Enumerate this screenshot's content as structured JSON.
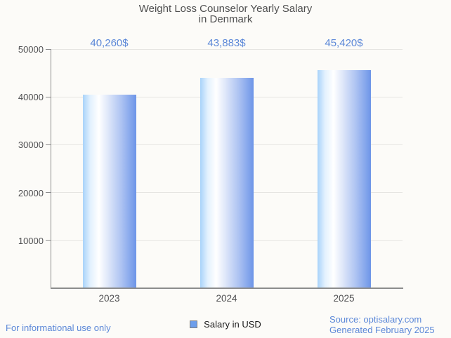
{
  "chart": {
    "title_line1": "Weight Loss Counselor Yearly Salary",
    "title_line2": "in Denmark"
  },
  "chart_data": {
    "type": "bar",
    "title": "Weight Loss Counselor Yearly Salary in Denmark",
    "categories": [
      "2023",
      "2024",
      "2025"
    ],
    "series": [
      {
        "name": "Salary in USD",
        "values": [
          40260,
          43883,
          45420
        ]
      }
    ],
    "value_labels": [
      "40,260$",
      "43,883$",
      "45,420$"
    ],
    "xlabel": "",
    "ylabel": "",
    "ylim": [
      0,
      50000
    ],
    "yticks": [
      10000,
      20000,
      30000,
      40000,
      50000
    ],
    "ytick_labels": [
      "10000",
      "20000",
      "30000",
      "40000",
      "50000"
    ],
    "grid": true,
    "legend_position": "bottom"
  },
  "legend": {
    "label": "Salary in USD",
    "swatch_color": "#6d9eeb"
  },
  "footer": {
    "left": "For informational use only",
    "source": "Source: optisalary.com",
    "generated": "Generated February 2025"
  },
  "colors": {
    "background": "#fcfbf8",
    "title": "#4f4f4f",
    "value_label": "#5c88d8",
    "footer_text": "#5c88d8",
    "axis_label": "#4f4f51",
    "gridline": "#e6e5e2",
    "axis_line": "#8c8c8c",
    "bar_gradient_left": "#a8d3fa",
    "bar_gradient_highlight": "#ffffff",
    "bar_gradient_right": "#6d95e8"
  }
}
